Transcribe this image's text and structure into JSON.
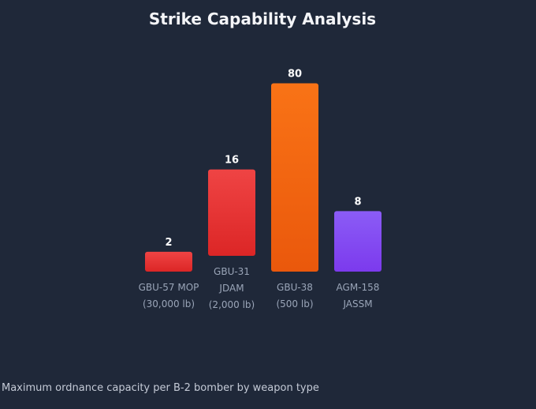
{
  "chart_data": {
    "type": "bar",
    "title": "Strike Capability Analysis",
    "categories": [
      [
        "GBU-57 MOP",
        "(30,000 lb)"
      ],
      [
        "GBU-31",
        "JDAM",
        "(2,000 lb)"
      ],
      [
        "GBU-38",
        "(500 lb)"
      ],
      [
        "AGM-158",
        "JASSM"
      ]
    ],
    "values": [
      2,
      16,
      80,
      8
    ],
    "value_labels": [
      "2",
      "16",
      "80",
      "8"
    ],
    "bar_colors": [
      [
        "#ef4444",
        "#dc2626"
      ],
      [
        "#ef4444",
        "#dc2626"
      ],
      [
        "#f97316",
        "#ea580c"
      ],
      [
        "#8b5cf6",
        "#7c3aed"
      ]
    ],
    "xlabel": "",
    "ylabel": "",
    "grid": false,
    "legend": "none"
  },
  "caption": "Maximum ordnance capacity per B-2 bomber by weapon type"
}
